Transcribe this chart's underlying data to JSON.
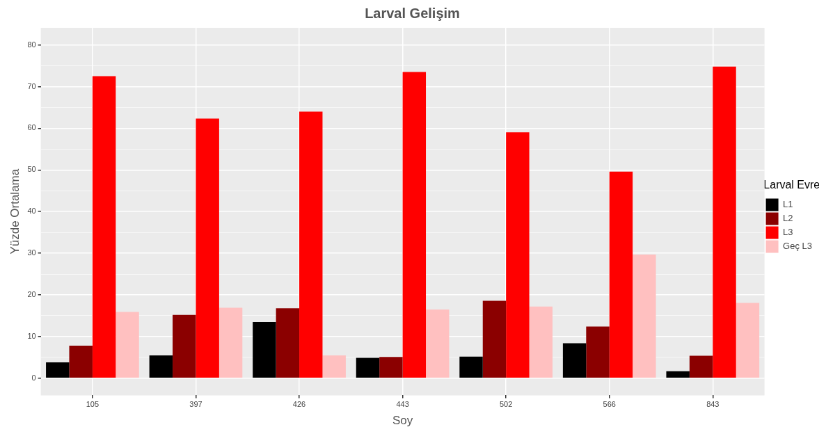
{
  "chart_data": {
    "type": "bar",
    "title": "Larval Gelişim",
    "xlabel": "Soy",
    "ylabel": "Yüzde Ortalama",
    "legend_title": "Larval Evre",
    "categories": [
      "105",
      "397",
      "426",
      "443",
      "502",
      "566",
      "843"
    ],
    "series": [
      {
        "name": "L1",
        "color": "#000000",
        "values": [
          3.8,
          5.5,
          13.5,
          4.9,
          5.2,
          8.4,
          1.7
        ]
      },
      {
        "name": "L2",
        "color": "#8b0000",
        "values": [
          7.8,
          15.2,
          16.8,
          5.1,
          18.6,
          12.4,
          5.4
        ]
      },
      {
        "name": "L3",
        "color": "#ff0000",
        "values": [
          72.5,
          62.3,
          64.0,
          73.5,
          59.0,
          49.6,
          74.8
        ]
      },
      {
        "name": "Geç L3",
        "color": "#ffc0c0",
        "values": [
          15.9,
          16.9,
          5.5,
          16.5,
          17.2,
          29.7,
          18.1
        ]
      }
    ],
    "ylim": [
      -4.1,
      84.1
    ],
    "yticks": [
      0,
      {
        "value": 5,
        "label": null
      },
      10,
      {
        "value": 15,
        "label": null
      },
      20,
      {
        "value": 25,
        "label": null
      },
      30,
      {
        "value": 35,
        "label": null
      },
      40,
      {
        "value": 45,
        "label": null
      },
      50,
      {
        "value": 55,
        "label": null
      },
      60,
      {
        "value": 65,
        "label": null
      },
      70,
      {
        "value": 75,
        "label": null
      },
      80
    ],
    "grid": true,
    "legend": "right"
  }
}
